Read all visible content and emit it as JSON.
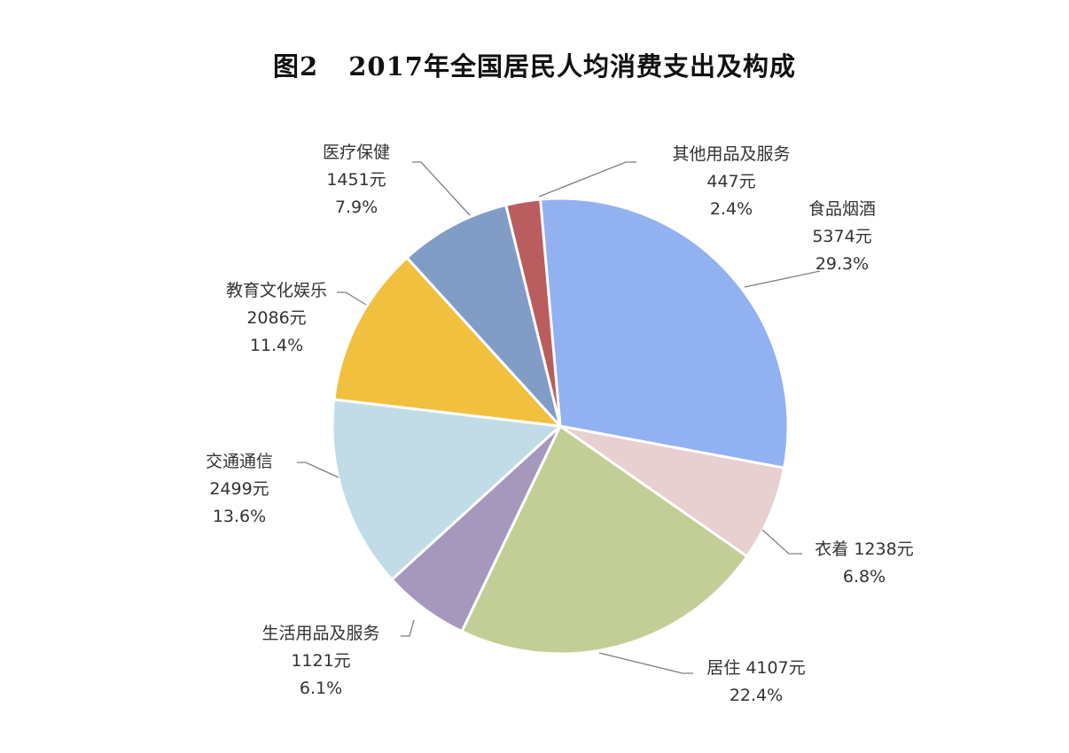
{
  "title": {
    "figure_no": "图2",
    "text": "2017年全国居民人均消费支出及构成"
  },
  "chart_data": {
    "type": "pie",
    "title": "2017年全国居民人均消费支出及构成",
    "unit": "元",
    "start_angle_deg": -5,
    "direction": "clockwise",
    "slices": [
      {
        "name": "食品烟酒",
        "value": 5374,
        "value_label": "5374元",
        "percent": 29.3,
        "percent_label": "29.3%",
        "color": "#92B1F0"
      },
      {
        "name": "衣着",
        "value": 1238,
        "value_label": "1238元",
        "percent": 6.8,
        "percent_label": "6.8%",
        "color": "#E8CFD0"
      },
      {
        "name": "居住",
        "value": 4107,
        "value_label": "4107元",
        "percent": 22.4,
        "percent_label": "22.4%",
        "color": "#C2CE96"
      },
      {
        "name": "生活用品及服务",
        "value": 1121,
        "value_label": "1121元",
        "percent": 6.1,
        "percent_label": "6.1%",
        "color": "#A698BC"
      },
      {
        "name": "交通通信",
        "value": 2499,
        "value_label": "2499元",
        "percent": 13.6,
        "percent_label": "13.6%",
        "color": "#C1DCE6"
      },
      {
        "name": "教育文化娱乐",
        "value": 2086,
        "value_label": "2086元",
        "percent": 11.4,
        "percent_label": "11.4%",
        "color": "#F1C03F"
      },
      {
        "name": "医疗保健",
        "value": 1451,
        "value_label": "1451元",
        "percent": 7.9,
        "percent_label": "7.9%",
        "color": "#819DC6"
      },
      {
        "name": "其他用品及服务",
        "value": 447,
        "value_label": "447元",
        "percent": 2.4,
        "percent_label": "2.4%",
        "color": "#BA5D5E"
      }
    ]
  }
}
